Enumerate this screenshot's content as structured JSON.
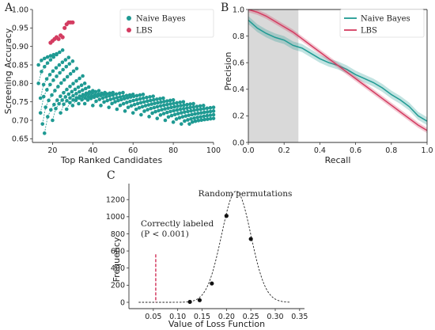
{
  "colors": {
    "naive_bayes": "#1f9a93",
    "lbs": "#d43c61",
    "shade": "#d9d9d9",
    "ink": "#222222"
  },
  "chart_data": [
    {
      "panel": "A",
      "type": "scatter",
      "xlabel": "Top Ranked Candidates",
      "ylabel": "Screening Accuracy",
      "xlim": [
        10,
        100
      ],
      "ylim": [
        0.64,
        1.0
      ],
      "xticks": [
        20,
        40,
        60,
        80,
        100
      ],
      "yticks": [
        0.65,
        0.7,
        0.75,
        0.8,
        0.85,
        0.9,
        0.95,
        1.0
      ],
      "legend": {
        "placement": "top-right",
        "entries": [
          "Naive Bayes",
          "LBS"
        ]
      },
      "series": [
        {
          "name": "Naive Bayes",
          "color": "#1f9a93",
          "style": "dashed-runs",
          "runs": [
            {
              "x_start": 13,
              "x_end": 22,
              "y_start": 0.85,
              "y_end": 0.88
            },
            {
              "x_start": 13,
              "x_end": 25,
              "y_start": 0.8,
              "y_end": 0.89
            },
            {
              "x_start": 14,
              "x_end": 28,
              "y_start": 0.76,
              "y_end": 0.87
            },
            {
              "x_start": 14,
              "x_end": 30,
              "y_start": 0.72,
              "y_end": 0.86
            },
            {
              "x_start": 15,
              "x_end": 32,
              "y_start": 0.69,
              "y_end": 0.84
            },
            {
              "x_start": 16,
              "x_end": 35,
              "y_start": 0.665,
              "y_end": 0.82
            },
            {
              "x_start": 20,
              "x_end": 36,
              "y_start": 0.7,
              "y_end": 0.8
            },
            {
              "x_start": 24,
              "x_end": 38,
              "y_start": 0.72,
              "y_end": 0.79
            },
            {
              "x_start": 27,
              "x_end": 40,
              "y_start": 0.73,
              "y_end": 0.78
            },
            {
              "x_start": 30,
              "x_end": 43,
              "y_start": 0.74,
              "y_end": 0.78
            },
            {
              "x_start": 33,
              "x_end": 46,
              "y_start": 0.745,
              "y_end": 0.775
            },
            {
              "x_start": 36,
              "x_end": 50,
              "y_start": 0.745,
              "y_end": 0.775
            },
            {
              "x_start": 40,
              "x_end": 55,
              "y_start": 0.74,
              "y_end": 0.775
            },
            {
              "x_start": 44,
              "x_end": 60,
              "y_start": 0.74,
              "y_end": 0.77
            },
            {
              "x_start": 48,
              "x_end": 65,
              "y_start": 0.735,
              "y_end": 0.77
            },
            {
              "x_start": 52,
              "x_end": 70,
              "y_start": 0.73,
              "y_end": 0.765
            },
            {
              "x_start": 56,
              "x_end": 75,
              "y_start": 0.725,
              "y_end": 0.76
            },
            {
              "x_start": 60,
              "x_end": 80,
              "y_start": 0.72,
              "y_end": 0.755
            },
            {
              "x_start": 64,
              "x_end": 85,
              "y_start": 0.715,
              "y_end": 0.75
            },
            {
              "x_start": 68,
              "x_end": 90,
              "y_start": 0.71,
              "y_end": 0.745
            },
            {
              "x_start": 72,
              "x_end": 95,
              "y_start": 0.705,
              "y_end": 0.74
            },
            {
              "x_start": 76,
              "x_end": 100,
              "y_start": 0.7,
              "y_end": 0.735
            },
            {
              "x_start": 80,
              "x_end": 100,
              "y_start": 0.695,
              "y_end": 0.725
            },
            {
              "x_start": 84,
              "x_end": 100,
              "y_start": 0.69,
              "y_end": 0.715
            },
            {
              "x_start": 88,
              "x_end": 100,
              "y_start": 0.69,
              "y_end": 0.705
            }
          ]
        },
        {
          "name": "LBS",
          "color": "#d43c61",
          "points": [
            [
              19,
              0.91
            ],
            [
              20,
              0.915
            ],
            [
              21,
              0.92
            ],
            [
              22,
              0.925
            ],
            [
              23,
              0.92
            ],
            [
              24,
              0.93
            ],
            [
              25,
              0.925
            ],
            [
              26,
              0.95
            ],
            [
              27,
              0.96
            ],
            [
              28,
              0.965
            ],
            [
              29,
              0.965
            ],
            [
              30,
              0.965
            ]
          ]
        }
      ]
    },
    {
      "panel": "B",
      "type": "line",
      "xlabel": "Recall",
      "ylabel": "Precision",
      "xlim": [
        0,
        1
      ],
      "ylim": [
        0,
        1
      ],
      "xticks": [
        0.0,
        0.2,
        0.4,
        0.6,
        0.8,
        1.0
      ],
      "yticks": [
        0.0,
        0.2,
        0.4,
        0.6,
        0.8,
        1.0
      ],
      "shaded_region": [
        0.0,
        0.28
      ],
      "legend": {
        "placement": "top-right",
        "entries": [
          "Naive Bayes",
          "LBS"
        ]
      },
      "series": [
        {
          "name": "Naive Bayes",
          "color": "#1f9a93",
          "band": 0.03,
          "x": [
            0,
            0.05,
            0.1,
            0.15,
            0.2,
            0.25,
            0.3,
            0.35,
            0.4,
            0.45,
            0.5,
            0.55,
            0.6,
            0.65,
            0.7,
            0.75,
            0.8,
            0.85,
            0.9,
            0.95,
            1.0
          ],
          "y": [
            0.92,
            0.86,
            0.82,
            0.79,
            0.77,
            0.73,
            0.71,
            0.67,
            0.63,
            0.6,
            0.58,
            0.55,
            0.51,
            0.48,
            0.45,
            0.41,
            0.36,
            0.32,
            0.27,
            0.2,
            0.16
          ]
        },
        {
          "name": "LBS",
          "color": "#d43c61",
          "band": 0.02,
          "x": [
            0,
            0.05,
            0.1,
            0.15,
            0.2,
            0.25,
            0.3,
            0.35,
            0.4,
            0.45,
            0.5,
            0.55,
            0.6,
            0.65,
            0.7,
            0.75,
            0.8,
            0.85,
            0.9,
            0.95,
            1.0
          ],
          "y": [
            1.0,
            0.98,
            0.95,
            0.91,
            0.87,
            0.83,
            0.78,
            0.73,
            0.68,
            0.63,
            0.58,
            0.53,
            0.48,
            0.43,
            0.38,
            0.33,
            0.28,
            0.23,
            0.18,
            0.13,
            0.09
          ]
        }
      ]
    },
    {
      "panel": "C",
      "type": "line",
      "xlabel": "Value of Loss Function",
      "ylabel": "Frequency",
      "xlim": [
        0.0,
        0.36
      ],
      "ylim": [
        0,
        1350
      ],
      "xticks": [
        0.05,
        0.1,
        0.15,
        0.2,
        0.25,
        0.3,
        0.35
      ],
      "yticks": [
        0,
        200,
        400,
        600,
        800,
        1000,
        1200
      ],
      "curve": {
        "label": "Random permutations",
        "mean": 0.22,
        "sd": 0.03,
        "peak": 1300,
        "x_start": 0.02,
        "x_end": 0.33
      },
      "points": [
        [
          0.125,
          5
        ],
        [
          0.145,
          25
        ],
        [
          0.17,
          220
        ],
        [
          0.2,
          1010
        ],
        [
          0.25,
          740
        ]
      ],
      "marker": {
        "label_line1": "Correctly labeled",
        "label_line2": "(P < 0.001)",
        "x": 0.055,
        "y_top": 560,
        "color": "#d43c61"
      }
    }
  ],
  "panels": {
    "a": "A",
    "b": "B",
    "c": "C"
  }
}
